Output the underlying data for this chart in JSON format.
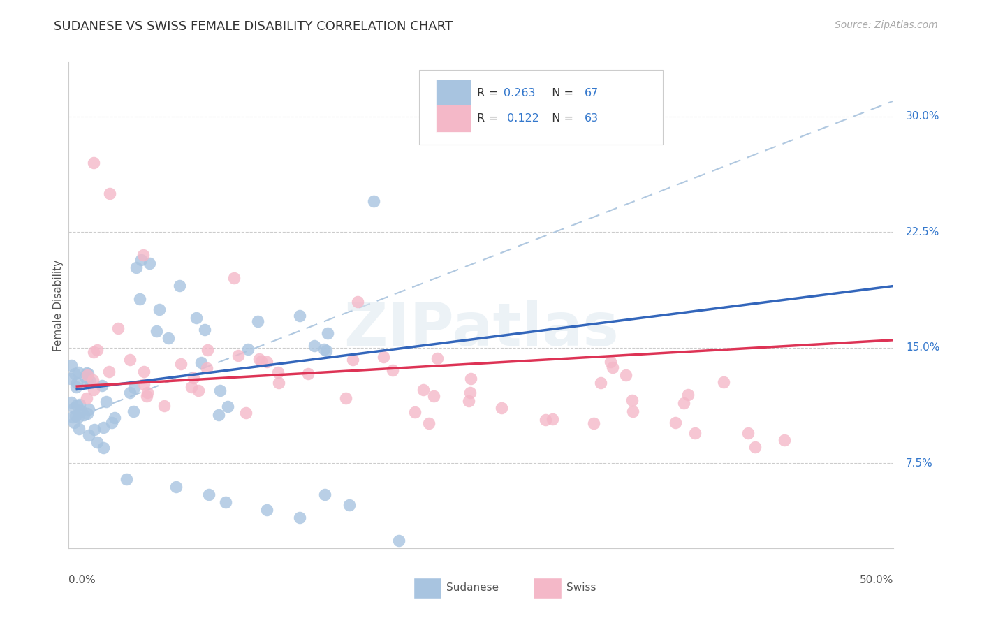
{
  "title": "SUDANESE VS SWISS FEMALE DISABILITY CORRELATION CHART",
  "source": "Source: ZipAtlas.com",
  "ylabel": "Female Disability",
  "sudanese_R": "0.263",
  "sudanese_N": "67",
  "swiss_R": "0.122",
  "swiss_N": "63",
  "sudanese_color": "#a8c4e0",
  "swiss_color": "#f4b8c8",
  "sudanese_line_color": "#3366bb",
  "swiss_line_color": "#dd3355",
  "dashed_line_color": "#b0c8e0",
  "accent_blue": "#3377cc",
  "accent_pink": "#3377cc",
  "watermark": "ZIPatlas",
  "ytick_vals": [
    0.075,
    0.15,
    0.225,
    0.3
  ],
  "ytick_labels": [
    "7.5%",
    "15.0%",
    "22.5%",
    "30.0%"
  ],
  "xmin": 0.0,
  "xmax": 0.5,
  "ymin": 0.02,
  "ymax": 0.335
}
